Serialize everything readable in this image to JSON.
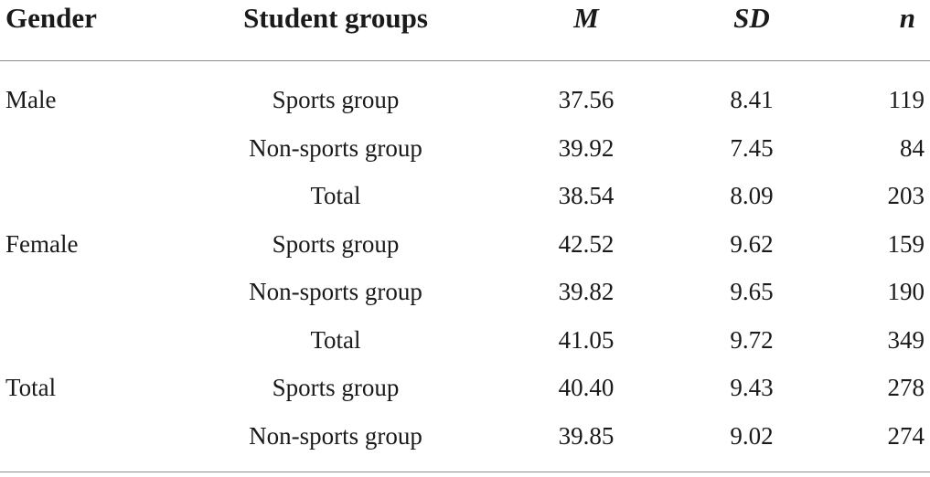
{
  "table": {
    "headers": {
      "gender": "Gender",
      "group": "Student groups",
      "m": "M",
      "sd": "SD",
      "n": "n"
    },
    "rows": [
      {
        "gender": "Male",
        "group": "Sports group",
        "m": "37.56",
        "sd": "8.41",
        "n": "119"
      },
      {
        "gender": "",
        "group": "Non-sports group",
        "m": "39.92",
        "sd": "7.45",
        "n": "84"
      },
      {
        "gender": "",
        "group": "Total",
        "m": "38.54",
        "sd": "8.09",
        "n": "203"
      },
      {
        "gender": "Female",
        "group": "Sports group",
        "m": "42.52",
        "sd": "9.62",
        "n": "159"
      },
      {
        "gender": "",
        "group": "Non-sports group",
        "m": "39.82",
        "sd": "9.65",
        "n": "190"
      },
      {
        "gender": "",
        "group": "Total",
        "m": "41.05",
        "sd": "9.72",
        "n": "349"
      },
      {
        "gender": "Total",
        "group": "Sports group",
        "m": "40.40",
        "sd": "9.43",
        "n": "278"
      },
      {
        "gender": "",
        "group": "Non-sports group",
        "m": "39.85",
        "sd": "9.02",
        "n": "274"
      }
    ]
  }
}
